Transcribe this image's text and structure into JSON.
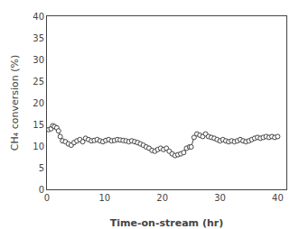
{
  "chart_data": {
    "type": "line",
    "x": [
      0.3,
      0.7,
      1.0,
      1.3,
      1.7,
      2.0,
      2.3,
      2.7,
      3.2,
      3.7,
      4.2,
      4.7,
      5.2,
      5.7,
      6.2,
      6.7,
      7.2,
      7.7,
      8.2,
      8.7,
      9.2,
      9.7,
      10.2,
      10.7,
      11.2,
      11.7,
      12.2,
      12.7,
      13.2,
      13.7,
      14.2,
      14.7,
      15.2,
      15.7,
      16.2,
      16.7,
      17.2,
      17.7,
      18.2,
      18.7,
      19.2,
      19.7,
      20.2,
      20.7,
      21.2,
      21.7,
      22.2,
      22.7,
      23.2,
      23.7,
      24.2,
      24.7,
      25.0,
      25.5,
      26.0,
      26.5,
      27.0,
      27.5,
      28.0,
      28.5,
      29.0,
      29.5,
      30.0,
      30.5,
      31.0,
      31.5,
      32.0,
      32.5,
      33.0,
      33.5,
      34.0,
      34.5,
      35.0,
      35.5,
      36.0,
      36.5,
      37.0,
      37.5,
      38.0,
      38.5,
      39.0,
      39.5,
      40.0
    ],
    "values": [
      13.8,
      14.0,
      14.7,
      14.5,
      14.2,
      13.5,
      12.2,
      11.2,
      11.0,
      10.5,
      10.2,
      10.8,
      11.2,
      11.5,
      11.0,
      11.8,
      11.5,
      11.2,
      11.3,
      11.5,
      11.2,
      11.0,
      11.3,
      11.5,
      11.2,
      11.3,
      11.5,
      11.4,
      11.3,
      11.2,
      11.0,
      11.2,
      11.0,
      10.8,
      10.5,
      10.2,
      9.8,
      9.5,
      9.0,
      8.8,
      9.2,
      9.5,
      9.2,
      9.5,
      8.8,
      8.2,
      7.8,
      8.0,
      8.2,
      8.5,
      9.5,
      9.8,
      9.8,
      12.0,
      12.8,
      12.5,
      12.2,
      12.8,
      12.2,
      12.0,
      11.8,
      11.5,
      11.2,
      11.5,
      11.2,
      11.0,
      11.2,
      11.0,
      11.2,
      11.5,
      11.2,
      11.0,
      11.2,
      11.5,
      11.8,
      12.0,
      11.8,
      12.0,
      12.2,
      12.0,
      12.2,
      12.0,
      12.2
    ],
    "xlabel": "Time-on-stream (hr)",
    "ylabel": "CH₄ conversion (%)",
    "xlim": [
      0,
      41.5
    ],
    "ylim": [
      0,
      40
    ],
    "xticks": [
      0,
      10,
      20,
      30,
      40
    ],
    "yticks": [
      0,
      5,
      10,
      15,
      20,
      25,
      30,
      35,
      40
    ],
    "color": "#444444",
    "marker": "circle",
    "grid": false
  }
}
